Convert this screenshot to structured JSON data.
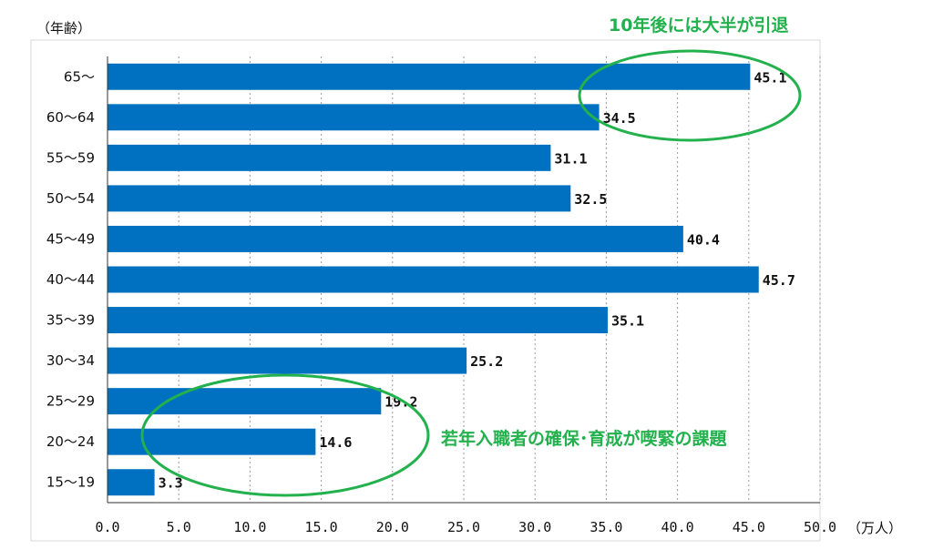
{
  "chart_data": {
    "type": "bar",
    "orientation": "horizontal",
    "categories": [
      "65～",
      "60～64",
      "55～59",
      "50～54",
      "45～49",
      "40～44",
      "35～39",
      "30～34",
      "25～29",
      "20～24",
      "15～19"
    ],
    "values": [
      45.1,
      34.5,
      31.1,
      32.5,
      40.4,
      45.7,
      35.1,
      25.2,
      19.2,
      14.6,
      3.3
    ],
    "value_labels": [
      "45.1",
      "34.5",
      "31.1",
      "32.5",
      "40.4",
      "45.7",
      "35.1",
      "25.2",
      "19.2",
      "14.6",
      "3.3"
    ],
    "xlim": [
      0,
      50
    ],
    "x_ticks": [
      0,
      5,
      10,
      15,
      20,
      25,
      30,
      35,
      40,
      45,
      50
    ],
    "x_tick_labels": [
      "0.0",
      "5.0",
      "10.0",
      "15.0",
      "20.0",
      "25.0",
      "30.0",
      "35.0",
      "40.0",
      "45.0",
      "50.0"
    ],
    "xlabel": "（万人）",
    "ylabel": "（年齢）",
    "grid": "vertical dashed",
    "bar_color": "#0070C0",
    "annotations": [
      {
        "text": "10年後には大半が引退",
        "color": "#22B14C"
      },
      {
        "text": "若年入職者の確保･育成が喫緊の課題",
        "color": "#22B14C"
      }
    ]
  }
}
